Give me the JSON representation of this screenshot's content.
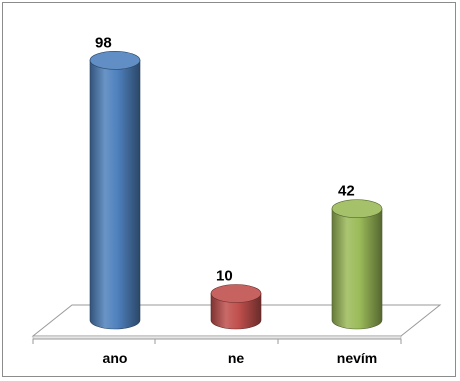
{
  "chart_data": {
    "type": "bar",
    "style": "3d-cylinder",
    "categories": [
      "ano",
      "ne",
      "nevím"
    ],
    "values": [
      98,
      10,
      42
    ],
    "colors": [
      "#4f81bd",
      "#c0504d",
      "#9bbb59"
    ],
    "data_labels": [
      "98",
      "10",
      "42"
    ],
    "title": "",
    "xlabel": "",
    "ylabel": "",
    "ylim": [
      0,
      100
    ],
    "grid": false,
    "legend": "none"
  }
}
